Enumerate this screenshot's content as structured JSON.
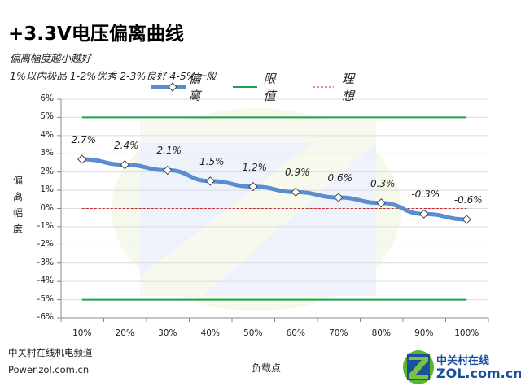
{
  "header": {
    "title": "+3.3V电压偏离曲线",
    "subtitle1": "偏离幅度越小越好",
    "subtitle2": "1%以内极品 1-2%优秀  2-3%良好 4-5%一般"
  },
  "legend": {
    "items": [
      {
        "label": "偏离",
        "color": "#5b8cd0",
        "style": "thick-line-diamond"
      },
      {
        "label": "限值",
        "color": "#1fa04a",
        "style": "solid"
      },
      {
        "label": "理想",
        "color": "#c0282d",
        "style": "dashed"
      }
    ]
  },
  "axes": {
    "ylabel": "偏\n离\n幅\n度",
    "xlabel": "负载点",
    "yticks": [
      "6%",
      "5%",
      "4%",
      "3%",
      "2%",
      "1%",
      "0%",
      "-1%",
      "-2%",
      "-3%",
      "-4%",
      "-5%",
      "-6%"
    ],
    "xticks": [
      "10%",
      "20%",
      "30%",
      "40%",
      "50%",
      "60%",
      "70%",
      "80%",
      "90%",
      "100%"
    ]
  },
  "footer": {
    "source_line1": "中关村在线机电频道",
    "source_line2": "Power.zol.com.cn",
    "logo_line1": "中关村在线",
    "logo_line2": "ZOL.com.cn"
  },
  "chart_data": {
    "type": "line",
    "title": "+3.3V电压偏离曲线",
    "subtitle": "偏离幅度越小越好 / 1%以内极品 1-2%优秀 2-3%良好 4-5%一般",
    "xlabel": "负载点",
    "ylabel": "偏离幅度",
    "categories": [
      "10%",
      "20%",
      "30%",
      "40%",
      "50%",
      "60%",
      "70%",
      "80%",
      "90%",
      "100%"
    ],
    "ylim": [
      -6,
      6
    ],
    "yunit": "%",
    "grid": true,
    "legend_position": "top",
    "series": [
      {
        "name": "偏离",
        "values": [
          2.7,
          2.4,
          2.1,
          1.5,
          1.2,
          0.9,
          0.6,
          0.3,
          -0.3,
          -0.6
        ],
        "data_labels": [
          "2.7%",
          "2.4%",
          "2.1%",
          "1.5%",
          "1.2%",
          "0.9%",
          "0.6%",
          "0.3%",
          "-0.3%",
          "-0.6%"
        ],
        "color": "#5b8cd0"
      },
      {
        "name": "限值",
        "values": [
          5,
          5,
          5,
          5,
          5,
          5,
          5,
          5,
          5,
          5
        ],
        "lower_values": [
          -5,
          -5,
          -5,
          -5,
          -5,
          -5,
          -5,
          -5,
          -5,
          -5
        ],
        "color": "#1fa04a"
      },
      {
        "name": "理想",
        "values": [
          0,
          0,
          0,
          0,
          0,
          0,
          0,
          0,
          0,
          0
        ],
        "color": "#c0282d"
      }
    ]
  }
}
